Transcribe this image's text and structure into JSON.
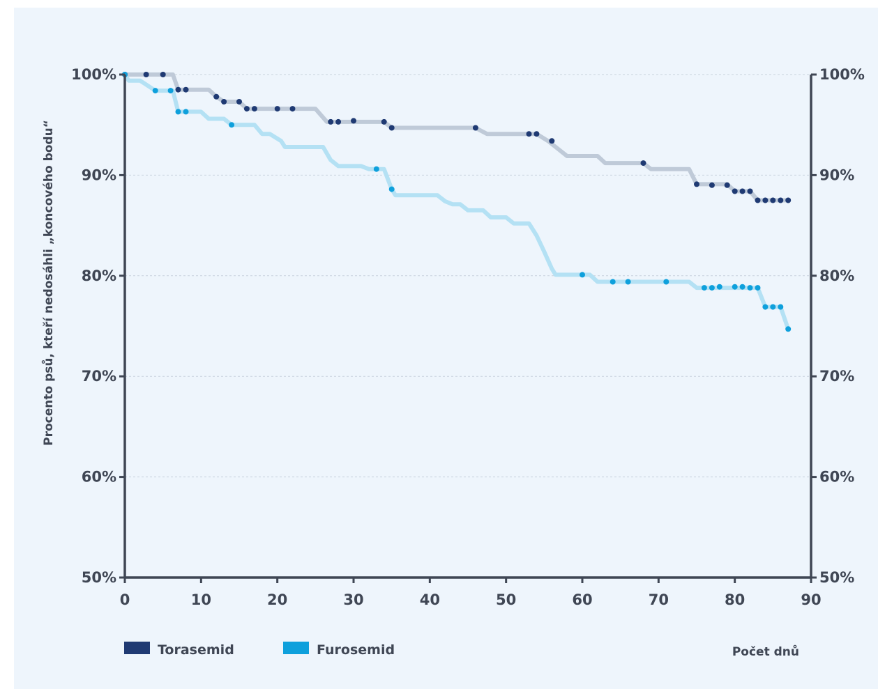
{
  "chart_data": {
    "type": "line",
    "xlabel": "Počet dnů",
    "ylabel": "Procento psů, kteří nedosáhli „koncového bodu“",
    "xlim": [
      0,
      90
    ],
    "ylim": [
      50,
      100
    ],
    "x_ticks": [
      "0",
      "10",
      "20",
      "30",
      "40",
      "50",
      "60",
      "70",
      "80",
      "90"
    ],
    "y_ticks": [
      "50%",
      "60%",
      "70%",
      "80%",
      "90%",
      "100%"
    ],
    "grid": true,
    "legend_position": "bottom-left",
    "series": [
      {
        "name": "Torasemid",
        "color": "#1f3a73",
        "line_color": "#bfcad8",
        "steps": [
          [
            0,
            100
          ],
          [
            6.3,
            100
          ],
          [
            7,
            98.5
          ],
          [
            11,
            98.5
          ],
          [
            12,
            97.8
          ],
          [
            13,
            97.3
          ],
          [
            15,
            97.3
          ],
          [
            16,
            96.6
          ],
          [
            25,
            96.6
          ],
          [
            26.5,
            95.3
          ],
          [
            34,
            95.3
          ],
          [
            35,
            94.7
          ],
          [
            46,
            94.7
          ],
          [
            47.5,
            94.1
          ],
          [
            54,
            94.1
          ],
          [
            55.5,
            93.4
          ],
          [
            57,
            92.5
          ],
          [
            58,
            91.9
          ],
          [
            62,
            91.9
          ],
          [
            63,
            91.2
          ],
          [
            68,
            91.2
          ],
          [
            69,
            90.6
          ],
          [
            74,
            90.6
          ],
          [
            75,
            89.1
          ],
          [
            79,
            89.1
          ],
          [
            80,
            88.4
          ],
          [
            82,
            88.4
          ],
          [
            83,
            87.5
          ],
          [
            87,
            87.5
          ]
        ],
        "censored": [
          [
            0,
            100
          ],
          [
            2.8,
            100
          ],
          [
            5,
            100
          ],
          [
            7,
            98.5
          ],
          [
            8,
            98.5
          ],
          [
            12,
            97.8
          ],
          [
            13,
            97.3
          ],
          [
            15,
            97.3
          ],
          [
            16,
            96.6
          ],
          [
            17,
            96.6
          ],
          [
            20,
            96.6
          ],
          [
            22,
            96.6
          ],
          [
            27,
            95.3
          ],
          [
            28,
            95.3
          ],
          [
            30,
            95.4
          ],
          [
            34,
            95.3
          ],
          [
            35,
            94.7
          ],
          [
            46,
            94.7
          ],
          [
            53,
            94.1
          ],
          [
            54,
            94.1
          ],
          [
            56,
            93.4
          ],
          [
            68,
            91.2
          ],
          [
            75,
            89.1
          ],
          [
            77,
            89.0
          ],
          [
            79,
            89.0
          ],
          [
            80,
            88.4
          ],
          [
            81,
            88.4
          ],
          [
            82,
            88.4
          ],
          [
            83,
            87.5
          ],
          [
            84,
            87.5
          ],
          [
            85,
            87.5
          ],
          [
            86,
            87.5
          ],
          [
            87,
            87.5
          ]
        ]
      },
      {
        "name": "Furosemid",
        "color": "#0ea0dc",
        "line_color": "#b4e1f4",
        "steps": [
          [
            0,
            100
          ],
          [
            0.5,
            99.4
          ],
          [
            2,
            99.4
          ],
          [
            3,
            98.9
          ],
          [
            4,
            98.4
          ],
          [
            6.3,
            98.4
          ],
          [
            7,
            96.3
          ],
          [
            10,
            96.3
          ],
          [
            11,
            95.6
          ],
          [
            13,
            95.6
          ],
          [
            14,
            95.0
          ],
          [
            17,
            95.0
          ],
          [
            18,
            94.1
          ],
          [
            19,
            94.1
          ],
          [
            20.5,
            93.4
          ],
          [
            21,
            92.8
          ],
          [
            26,
            92.8
          ],
          [
            27,
            91.5
          ],
          [
            28,
            90.9
          ],
          [
            31,
            90.9
          ],
          [
            32,
            90.6
          ],
          [
            34,
            90.6
          ],
          [
            35,
            88.6
          ],
          [
            35.5,
            88.0
          ],
          [
            41,
            88.0
          ],
          [
            42,
            87.4
          ],
          [
            43,
            87.1
          ],
          [
            44,
            87.1
          ],
          [
            45,
            86.5
          ],
          [
            47,
            86.5
          ],
          [
            48,
            85.8
          ],
          [
            50,
            85.8
          ],
          [
            51,
            85.2
          ],
          [
            53,
            85.2
          ],
          [
            54,
            84.0
          ],
          [
            55,
            82.4
          ],
          [
            56,
            80.7
          ],
          [
            56.5,
            80.1
          ],
          [
            61,
            80.1
          ],
          [
            62,
            79.4
          ],
          [
            74,
            79.4
          ],
          [
            75,
            78.8
          ],
          [
            83,
            78.8
          ],
          [
            84,
            76.9
          ],
          [
            86,
            76.9
          ],
          [
            87,
            74.7
          ]
        ],
        "censored": [
          [
            0,
            100
          ],
          [
            4,
            98.4
          ],
          [
            6,
            98.4
          ],
          [
            7,
            96.3
          ],
          [
            8,
            96.3
          ],
          [
            14,
            95.0
          ],
          [
            33,
            90.6
          ],
          [
            35,
            88.6
          ],
          [
            60,
            80.1
          ],
          [
            64,
            79.4
          ],
          [
            66,
            79.4
          ],
          [
            71,
            79.4
          ],
          [
            76,
            78.8
          ],
          [
            77,
            78.8
          ],
          [
            78,
            78.9
          ],
          [
            80,
            78.9
          ],
          [
            81,
            78.9
          ],
          [
            82,
            78.8
          ],
          [
            83,
            78.8
          ],
          [
            84,
            76.9
          ],
          [
            85,
            76.9
          ],
          [
            86,
            76.9
          ],
          [
            87,
            74.7
          ]
        ]
      }
    ]
  }
}
